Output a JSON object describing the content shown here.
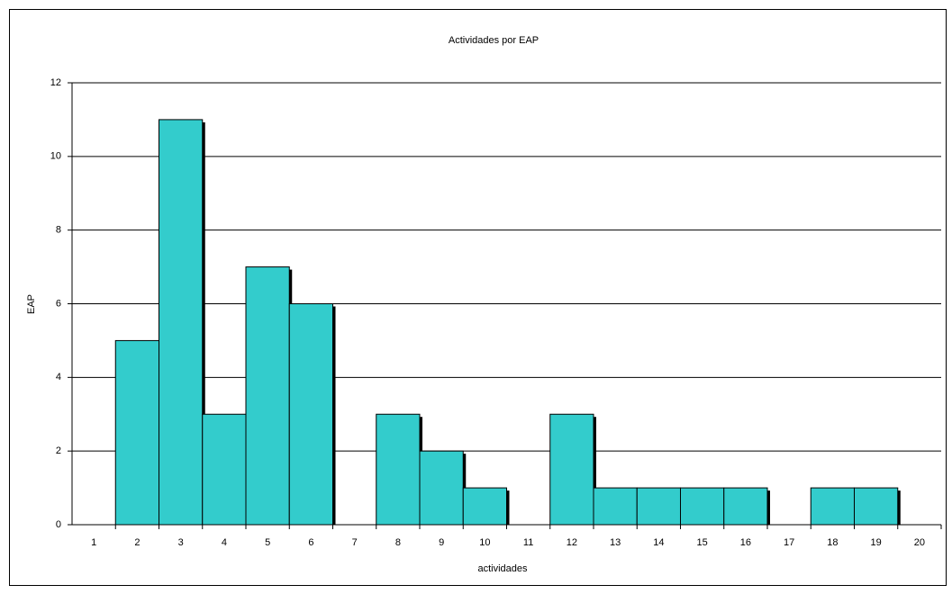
{
  "chart_data": {
    "type": "bar",
    "title": "Actividades por EAP",
    "x_label": "actividades",
    "y_label": "EAP",
    "categories": [
      "1",
      "2",
      "3",
      "4",
      "5",
      "6",
      "7",
      "8",
      "9",
      "10",
      "11",
      "12",
      "13",
      "14",
      "15",
      "16",
      "17",
      "18",
      "19",
      "20"
    ],
    "values": [
      0,
      5,
      11,
      3,
      7,
      6,
      0,
      3,
      2,
      1,
      0,
      3,
      1,
      1,
      1,
      1,
      0,
      1,
      1,
      0
    ],
    "color": "#33cccc",
    "ylim": [
      0,
      12
    ],
    "yticks": [
      0,
      2,
      4,
      6,
      8,
      10,
      12
    ],
    "grid": true
  }
}
